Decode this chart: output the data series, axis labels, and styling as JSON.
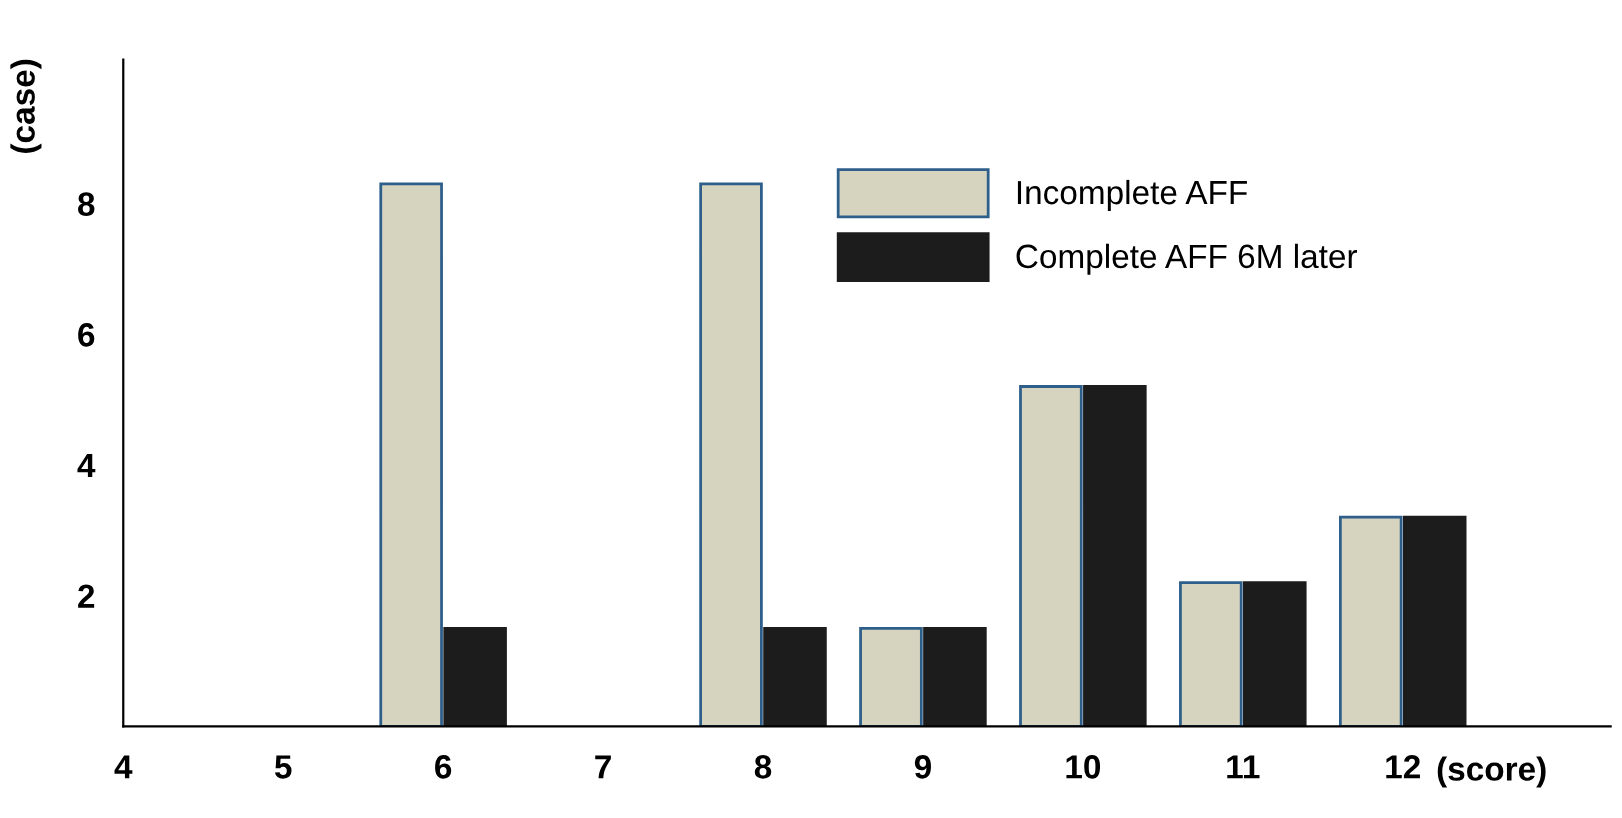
{
  "chart_data": {
    "type": "bar",
    "xlabel": "(score)",
    "ylabel": "(case)",
    "categories": [
      "4",
      "5",
      "6",
      "7",
      "8",
      "9",
      "10",
      "11",
      "12"
    ],
    "series": [
      {
        "name": "Incomplete AFF",
        "color": "#d6d3bf",
        "values": [
          null,
          null,
          8.3,
          null,
          8.3,
          1.5,
          5.2,
          2.2,
          3.2
        ]
      },
      {
        "name": "Complete AFF 6M later",
        "color": "#1c1c1c",
        "values": [
          null,
          null,
          1.5,
          null,
          1.5,
          1.5,
          5.2,
          2.2,
          3.2
        ]
      }
    ],
    "ylim": [
      0,
      10.2
    ],
    "yticks": [
      2,
      4,
      6,
      8
    ],
    "grid": false,
    "legend": "top right"
  }
}
